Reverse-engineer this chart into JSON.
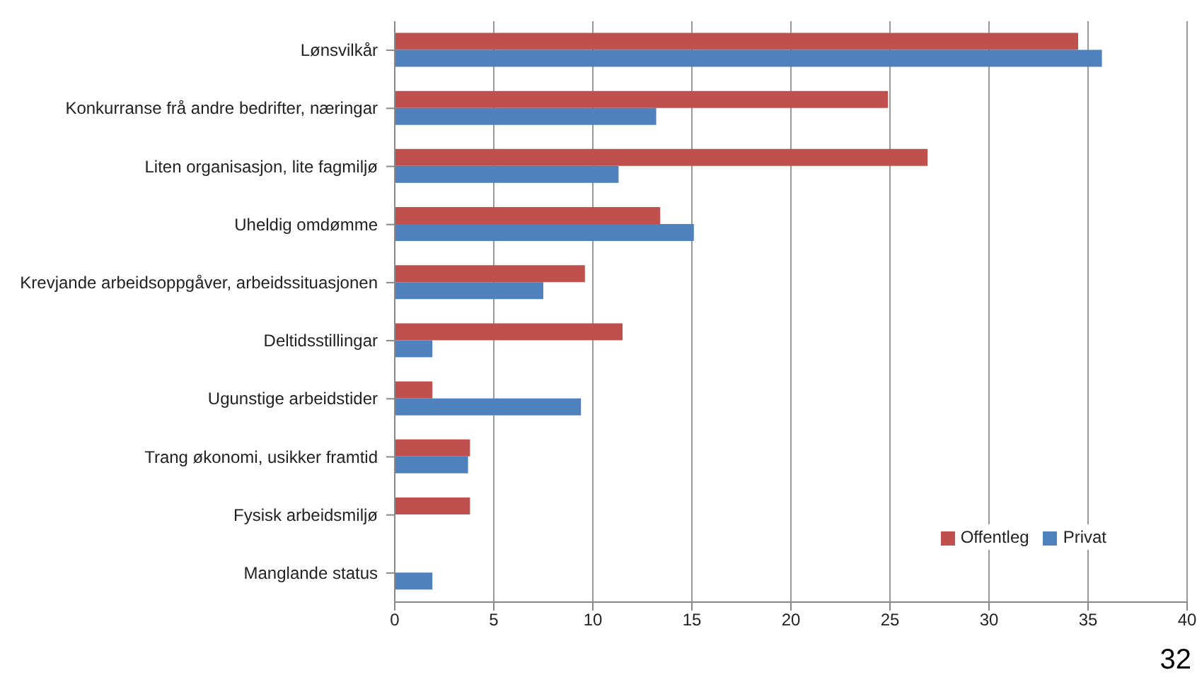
{
  "chart_data": {
    "type": "bar",
    "orientation": "horizontal",
    "categories": [
      "Lønsvilkår",
      "Konkurranse frå andre bedrifter, næringar",
      "Liten organisasjon, lite fagmiljø",
      "Uheldig omdømme",
      "Krevjande arbeidsoppgåver, arbeidssituasjonen",
      "Deltidsstillingar",
      "Ugunstige arbeidstider",
      "Trang økonomi, usikker framtid",
      "Fysisk arbeidsmiljø",
      "Manglande status"
    ],
    "series": [
      {
        "name": "Offentleg",
        "color": "#c0504d",
        "values": [
          34.5,
          24.9,
          26.9,
          13.4,
          9.6,
          11.5,
          1.9,
          3.8,
          3.8,
          null
        ]
      },
      {
        "name": "Privat",
        "color": "#4f81bd",
        "values": [
          35.7,
          13.2,
          11.3,
          15.1,
          7.5,
          1.9,
          9.4,
          3.7,
          null,
          1.9
        ]
      }
    ],
    "xlim": [
      0,
      40
    ],
    "xticks": [
      0,
      5,
      10,
      15,
      20,
      25,
      30,
      35,
      40
    ],
    "grid": "x",
    "legend": "bottom right",
    "annotations": [
      "32"
    ]
  }
}
